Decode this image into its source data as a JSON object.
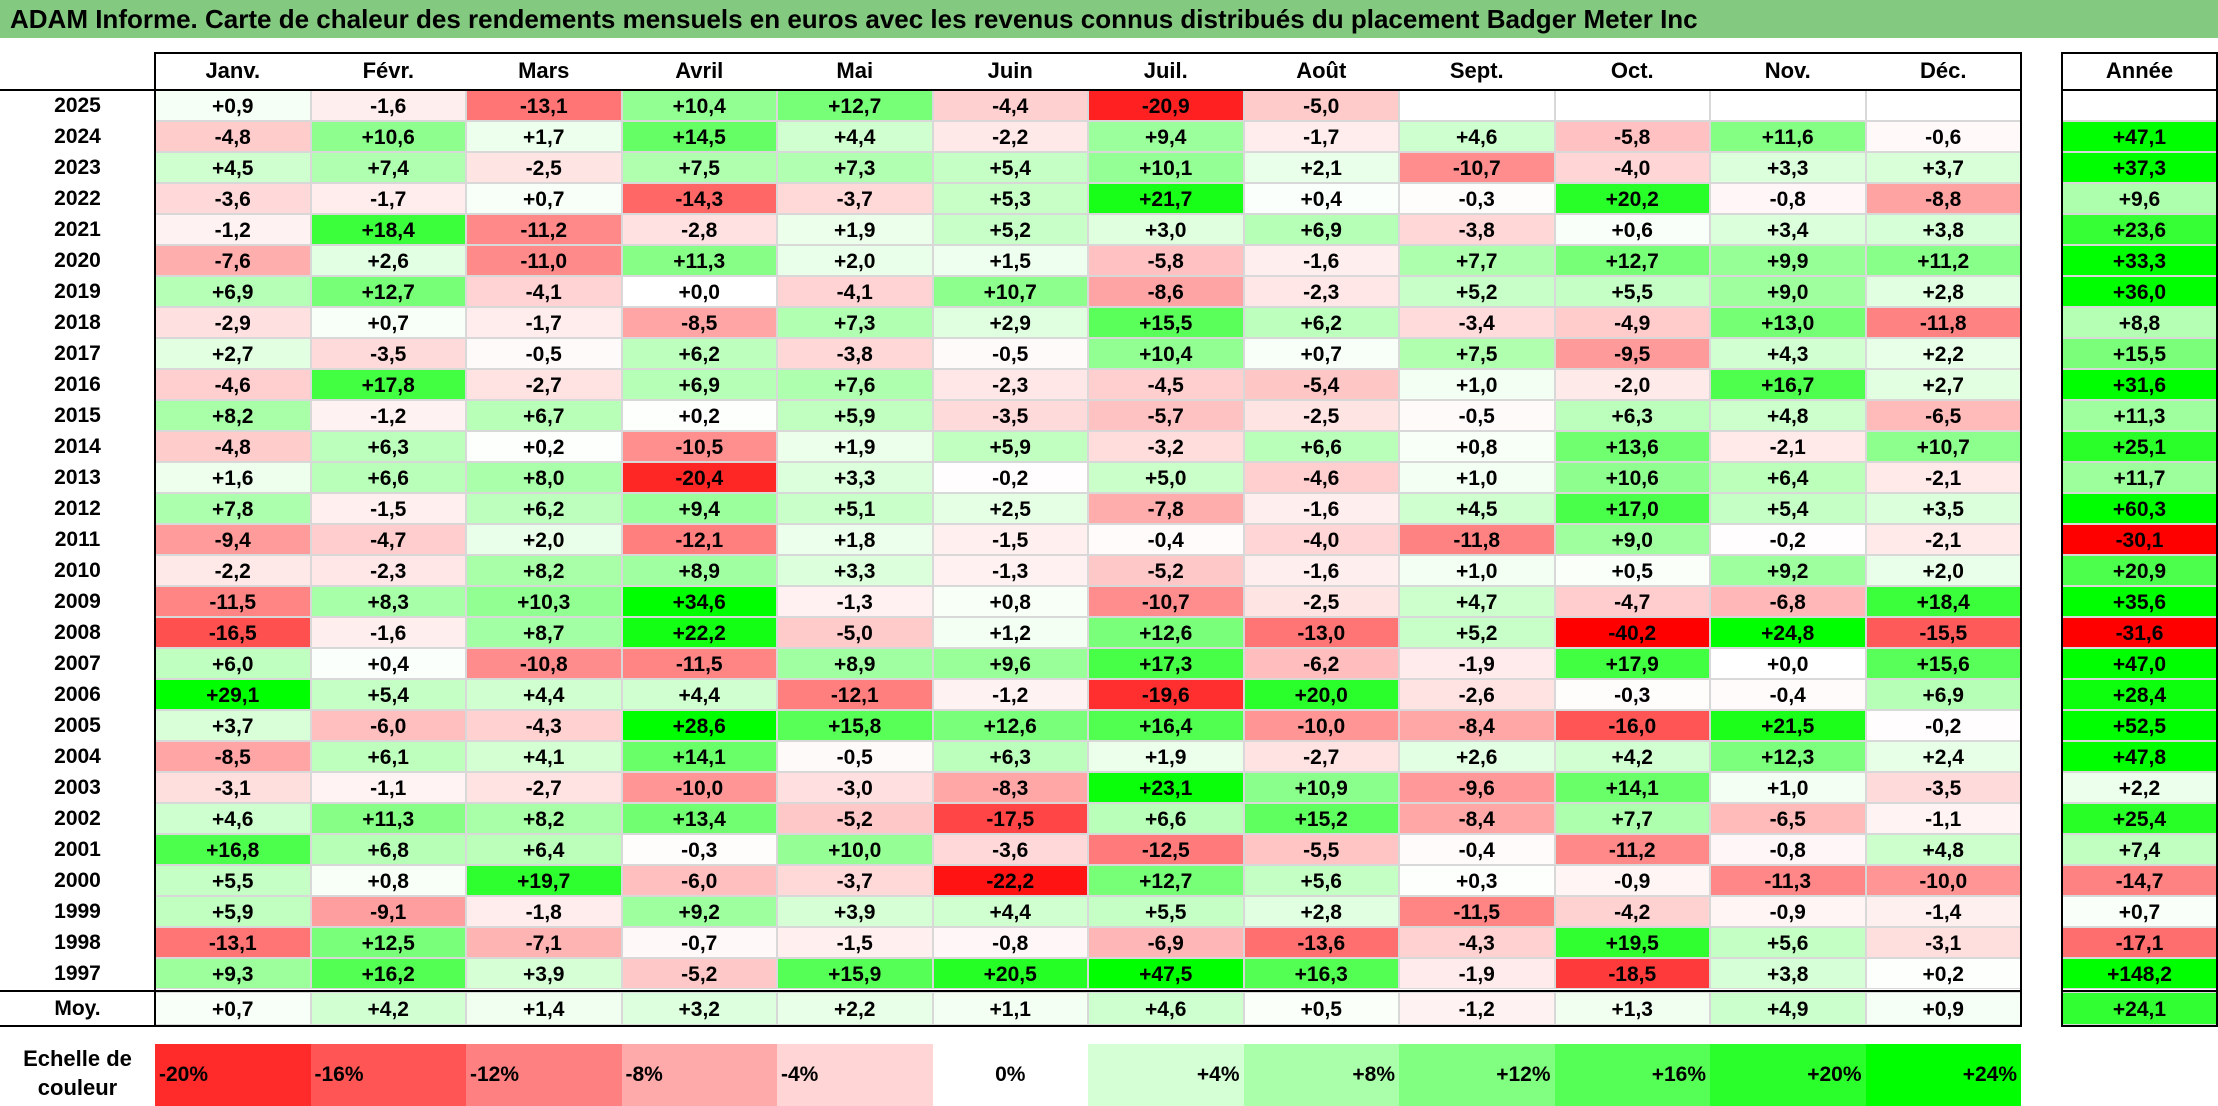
{
  "title": "ADAM Informe. Carte de chaleur des rendements mensuels en euros avec les revenus connus distribués du placement Badger Meter Inc",
  "chart_data": {
    "type": "heatmap",
    "title": "ADAM Informe. Carte de chaleur des rendements mensuels en euros avec les revenus connus distribués du placement Badger Meter Inc",
    "columns": [
      "Janv.",
      "Févr.",
      "Mars",
      "Avril",
      "Mai",
      "Juin",
      "Juil.",
      "Août",
      "Sept.",
      "Oct.",
      "Nov.",
      "Déc."
    ],
    "year_column": "Année",
    "rows": [
      {
        "year": "2025",
        "values": [
          "+0,9",
          "-1,6",
          "-13,1",
          "+10,4",
          "+12,7",
          "-4,4",
          "-20,9",
          "-5,0",
          "",
          "",
          "",
          ""
        ],
        "annual": ""
      },
      {
        "year": "2024",
        "values": [
          "-4,8",
          "+10,6",
          "+1,7",
          "+14,5",
          "+4,4",
          "-2,2",
          "+9,4",
          "-1,7",
          "+4,6",
          "-5,8",
          "+11,6",
          "-0,6"
        ],
        "annual": "+47,1"
      },
      {
        "year": "2023",
        "values": [
          "+4,5",
          "+7,4",
          "-2,5",
          "+7,5",
          "+7,3",
          "+5,4",
          "+10,1",
          "+2,1",
          "-10,7",
          "-4,0",
          "+3,3",
          "+3,7"
        ],
        "annual": "+37,3"
      },
      {
        "year": "2022",
        "values": [
          "-3,6",
          "-1,7",
          "+0,7",
          "-14,3",
          "-3,7",
          "+5,3",
          "+21,7",
          "+0,4",
          "-0,3",
          "+20,2",
          "-0,8",
          "-8,8"
        ],
        "annual": "+9,6"
      },
      {
        "year": "2021",
        "values": [
          "-1,2",
          "+18,4",
          "-11,2",
          "-2,8",
          "+1,9",
          "+5,2",
          "+3,0",
          "+6,9",
          "-3,8",
          "+0,6",
          "+3,4",
          "+3,8"
        ],
        "annual": "+23,6"
      },
      {
        "year": "2020",
        "values": [
          "-7,6",
          "+2,6",
          "-11,0",
          "+11,3",
          "+2,0",
          "+1,5",
          "-5,8",
          "-1,6",
          "+7,7",
          "+12,7",
          "+9,9",
          "+11,2"
        ],
        "annual": "+33,3"
      },
      {
        "year": "2019",
        "values": [
          "+6,9",
          "+12,7",
          "-4,1",
          "+0,0",
          "-4,1",
          "+10,7",
          "-8,6",
          "-2,3",
          "+5,2",
          "+5,5",
          "+9,0",
          "+2,8"
        ],
        "annual": "+36,0"
      },
      {
        "year": "2018",
        "values": [
          "-2,9",
          "+0,7",
          "-1,7",
          "-8,5",
          "+7,3",
          "+2,9",
          "+15,5",
          "+6,2",
          "-3,4",
          "-4,9",
          "+13,0",
          "-11,8"
        ],
        "annual": "+8,8"
      },
      {
        "year": "2017",
        "values": [
          "+2,7",
          "-3,5",
          "-0,5",
          "+6,2",
          "-3,8",
          "-0,5",
          "+10,4",
          "+0,7",
          "+7,5",
          "-9,5",
          "+4,3",
          "+2,2"
        ],
        "annual": "+15,5"
      },
      {
        "year": "2016",
        "values": [
          "-4,6",
          "+17,8",
          "-2,7",
          "+6,9",
          "+7,6",
          "-2,3",
          "-4,5",
          "-5,4",
          "+1,0",
          "-2,0",
          "+16,7",
          "+2,7"
        ],
        "annual": "+31,6"
      },
      {
        "year": "2015",
        "values": [
          "+8,2",
          "-1,2",
          "+6,7",
          "+0,2",
          "+5,9",
          "-3,5",
          "-5,7",
          "-2,5",
          "-0,5",
          "+6,3",
          "+4,8",
          "-6,5"
        ],
        "annual": "+11,3"
      },
      {
        "year": "2014",
        "values": [
          "-4,8",
          "+6,3",
          "+0,2",
          "-10,5",
          "+1,9",
          "+5,9",
          "-3,2",
          "+6,6",
          "+0,8",
          "+13,6",
          "-2,1",
          "+10,7"
        ],
        "annual": "+25,1"
      },
      {
        "year": "2013",
        "values": [
          "+1,6",
          "+6,6",
          "+8,0",
          "-20,4",
          "+3,3",
          "-0,2",
          "+5,0",
          "-4,6",
          "+1,0",
          "+10,6",
          "+6,4",
          "-2,1"
        ],
        "annual": "+11,7"
      },
      {
        "year": "2012",
        "values": [
          "+7,8",
          "-1,5",
          "+6,2",
          "+9,4",
          "+5,1",
          "+2,5",
          "-7,8",
          "-1,6",
          "+4,5",
          "+17,0",
          "+5,4",
          "+3,5"
        ],
        "annual": "+60,3"
      },
      {
        "year": "2011",
        "values": [
          "-9,4",
          "-4,7",
          "+2,0",
          "-12,1",
          "+1,8",
          "-1,5",
          "-0,4",
          "-4,0",
          "-11,8",
          "+9,0",
          "-0,2",
          "-2,1"
        ],
        "annual": "-30,1"
      },
      {
        "year": "2010",
        "values": [
          "-2,2",
          "-2,3",
          "+8,2",
          "+8,9",
          "+3,3",
          "-1,3",
          "-5,2",
          "-1,6",
          "+1,0",
          "+0,5",
          "+9,2",
          "+2,0"
        ],
        "annual": "+20,9"
      },
      {
        "year": "2009",
        "values": [
          "-11,5",
          "+8,3",
          "+10,3",
          "+34,6",
          "-1,3",
          "+0,8",
          "-10,7",
          "-2,5",
          "+4,7",
          "-4,7",
          "-6,8",
          "+18,4"
        ],
        "annual": "+35,6"
      },
      {
        "year": "2008",
        "values": [
          "-16,5",
          "-1,6",
          "+8,7",
          "+22,2",
          "-5,0",
          "+1,2",
          "+12,6",
          "-13,0",
          "+5,2",
          "-40,2",
          "+24,8",
          "-15,5"
        ],
        "annual": "-31,6"
      },
      {
        "year": "2007",
        "values": [
          "+6,0",
          "+0,4",
          "-10,8",
          "-11,5",
          "+8,9",
          "+9,6",
          "+17,3",
          "-6,2",
          "-1,9",
          "+17,9",
          "+0,0",
          "+15,6"
        ],
        "annual": "+47,0"
      },
      {
        "year": "2006",
        "values": [
          "+29,1",
          "+5,4",
          "+4,4",
          "+4,4",
          "-12,1",
          "-1,2",
          "-19,6",
          "+20,0",
          "-2,6",
          "-0,3",
          "-0,4",
          "+6,9"
        ],
        "annual": "+28,4"
      },
      {
        "year": "2005",
        "values": [
          "+3,7",
          "-6,0",
          "-4,3",
          "+28,6",
          "+15,8",
          "+12,6",
          "+16,4",
          "-10,0",
          "-8,4",
          "-16,0",
          "+21,5",
          "-0,2"
        ],
        "annual": "+52,5"
      },
      {
        "year": "2004",
        "values": [
          "-8,5",
          "+6,1",
          "+4,1",
          "+14,1",
          "-0,5",
          "+6,3",
          "+1,9",
          "-2,7",
          "+2,6",
          "+4,2",
          "+12,3",
          "+2,4"
        ],
        "annual": "+47,8"
      },
      {
        "year": "2003",
        "values": [
          "-3,1",
          "-1,1",
          "-2,7",
          "-10,0",
          "-3,0",
          "-8,3",
          "+23,1",
          "+10,9",
          "-9,6",
          "+14,1",
          "+1,0",
          "-3,5"
        ],
        "annual": "+2,2"
      },
      {
        "year": "2002",
        "values": [
          "+4,6",
          "+11,3",
          "+8,2",
          "+13,4",
          "-5,2",
          "-17,5",
          "+6,6",
          "+15,2",
          "-8,4",
          "+7,7",
          "-6,5",
          "-1,1"
        ],
        "annual": "+25,4"
      },
      {
        "year": "2001",
        "values": [
          "+16,8",
          "+6,8",
          "+6,4",
          "-0,3",
          "+10,0",
          "-3,6",
          "-12,5",
          "-5,5",
          "-0,4",
          "-11,2",
          "-0,8",
          "+4,8"
        ],
        "annual": "+7,4"
      },
      {
        "year": "2000",
        "values": [
          "+5,5",
          "+0,8",
          "+19,7",
          "-6,0",
          "-3,7",
          "-22,2",
          "+12,7",
          "+5,6",
          "+0,3",
          "-0,9",
          "-11,3",
          "-10,0"
        ],
        "annual": "-14,7"
      },
      {
        "year": "1999",
        "values": [
          "+5,9",
          "-9,1",
          "-1,8",
          "+9,2",
          "+3,9",
          "+4,4",
          "+5,5",
          "+2,8",
          "-11,5",
          "-4,2",
          "-0,9",
          "-1,4"
        ],
        "annual": "+0,7"
      },
      {
        "year": "1998",
        "values": [
          "-13,1",
          "+12,5",
          "-7,1",
          "-0,7",
          "-1,5",
          "-0,8",
          "-6,9",
          "-13,6",
          "-4,3",
          "+19,5",
          "+5,6",
          "-3,1"
        ],
        "annual": "-17,1"
      },
      {
        "year": "1997",
        "values": [
          "+9,3",
          "+16,2",
          "+3,9",
          "-5,2",
          "+15,9",
          "+20,5",
          "+47,5",
          "+16,3",
          "-1,9",
          "-18,5",
          "+3,8",
          "+0,2"
        ],
        "annual": "+148,2"
      }
    ],
    "average": {
      "label": "Moy.",
      "values": [
        "+0,7",
        "+4,2",
        "+1,4",
        "+3,2",
        "+2,2",
        "+1,1",
        "+4,6",
        "+0,5",
        "-1,2",
        "+1,3",
        "+4,9",
        "+0,9"
      ],
      "annual": "+24,1"
    },
    "color_scale": {
      "label": "Echelle de couleur",
      "steps": [
        "-20%",
        "-16%",
        "-12%",
        "-8%",
        "-4%",
        "0%",
        "+4%",
        "+8%",
        "+12%",
        "+16%",
        "+20%",
        "+24%"
      ],
      "negative_color": "#ff0000",
      "positive_color": "#00ff00",
      "neutral_color": "#ffffff"
    }
  }
}
